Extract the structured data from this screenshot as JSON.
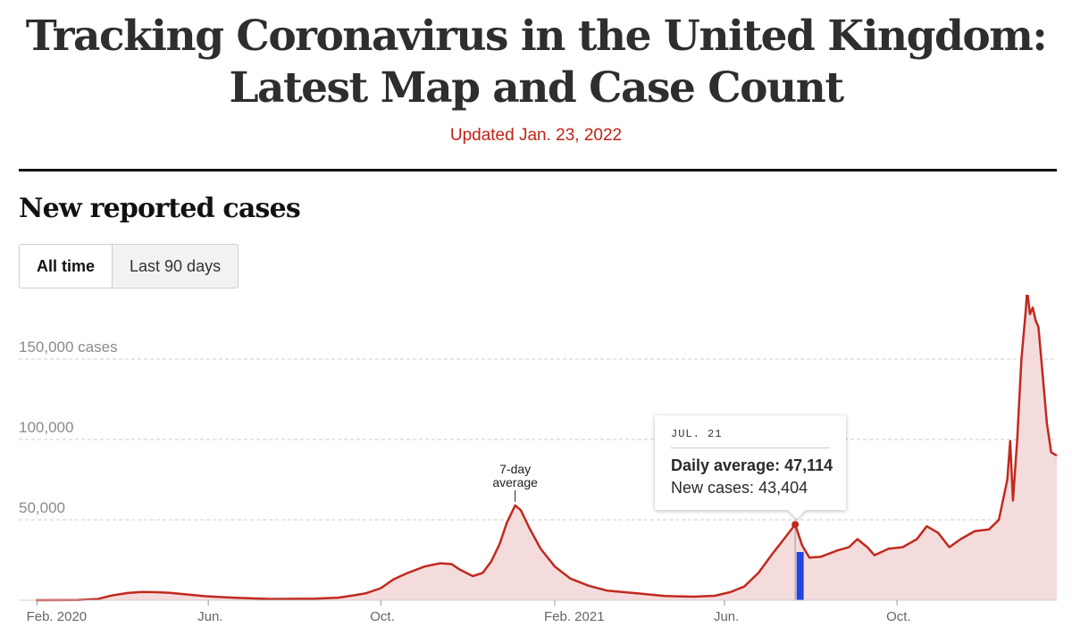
{
  "header": {
    "title": "Tracking Coronavirus in the United Kingdom: Latest Map and Case Count",
    "updated": "Updated Jan. 23, 2022"
  },
  "section": {
    "title": "New reported cases"
  },
  "toggle": {
    "all_time": "All time",
    "last_90": "Last 90 days",
    "selected": "All time"
  },
  "colors": {
    "line": "#c1291f",
    "area": "#f4dcdc",
    "highlight": "#2244e0",
    "grid": "#cccccc"
  },
  "tooltip": {
    "date": "JUL. 21",
    "average_label": "Daily average:",
    "average_value": "47,114",
    "cases_label": "New cases:",
    "cases_value": "43,404"
  },
  "chart_data": {
    "type": "area",
    "title": "",
    "xlabel": "",
    "ylabel": "",
    "x_start": "2020-01-31",
    "x_end": "2022-01-22",
    "ylim": [
      0,
      190000
    ],
    "y_ticks": [
      {
        "value": 150000,
        "label": "150,000 cases"
      },
      {
        "value": 100000,
        "label": "100,000"
      },
      {
        "value": 50000,
        "label": "50,000"
      }
    ],
    "x_ticks": [
      {
        "date": "2020-02-01",
        "label": "Feb. 2020"
      },
      {
        "date": "2020-06-01",
        "label": "Jun."
      },
      {
        "date": "2020-10-01",
        "label": "Oct."
      },
      {
        "date": "2021-02-01",
        "label": "Feb. 2021"
      },
      {
        "date": "2021-06-01",
        "label": "Jun."
      },
      {
        "date": "2021-10-01",
        "label": "Oct."
      }
    ],
    "annotation": {
      "lines": [
        "7-day",
        "average"
      ],
      "date": "2021-01-04",
      "value": 59000
    },
    "highlight": {
      "start": "2021-07-22",
      "end": "2021-07-27",
      "height": 30000
    },
    "selected_point": {
      "date": "2021-07-21",
      "value": 47114
    },
    "series": [
      {
        "values": [
          [
            "2020-01-31",
            0
          ],
          [
            "2020-03-01",
            100
          ],
          [
            "2020-03-15",
            800
          ],
          [
            "2020-03-25",
            3000
          ],
          [
            "2020-04-05",
            4500
          ],
          [
            "2020-04-15",
            5100
          ],
          [
            "2020-04-25",
            5000
          ],
          [
            "2020-05-05",
            4600
          ],
          [
            "2020-05-15",
            3700
          ],
          [
            "2020-05-30",
            2500
          ],
          [
            "2020-06-20",
            1500
          ],
          [
            "2020-07-15",
            800
          ],
          [
            "2020-08-15",
            1000
          ],
          [
            "2020-09-01",
            1600
          ],
          [
            "2020-09-10",
            2800
          ],
          [
            "2020-09-20",
            4200
          ],
          [
            "2020-10-01",
            7500
          ],
          [
            "2020-10-10",
            13000
          ],
          [
            "2020-10-20",
            17000
          ],
          [
            "2020-11-01",
            21000
          ],
          [
            "2020-11-12",
            23000
          ],
          [
            "2020-11-20",
            22500
          ],
          [
            "2020-11-26",
            19000
          ],
          [
            "2020-12-05",
            15000
          ],
          [
            "2020-12-12",
            17000
          ],
          [
            "2020-12-18",
            24000
          ],
          [
            "2020-12-24",
            35000
          ],
          [
            "2020-12-29",
            48000
          ],
          [
            "2021-01-04",
            59000
          ],
          [
            "2021-01-08",
            56000
          ],
          [
            "2021-01-14",
            45000
          ],
          [
            "2021-01-22",
            32000
          ],
          [
            "2021-02-01",
            21000
          ],
          [
            "2021-02-12",
            13500
          ],
          [
            "2021-02-25",
            9000
          ],
          [
            "2021-03-10",
            6000
          ],
          [
            "2021-04-01",
            4200
          ],
          [
            "2021-04-20",
            2600
          ],
          [
            "2021-05-10",
            2200
          ],
          [
            "2021-05-25",
            2800
          ],
          [
            "2021-06-05",
            5000
          ],
          [
            "2021-06-15",
            8500
          ],
          [
            "2021-06-25",
            17000
          ],
          [
            "2021-07-05",
            29000
          ],
          [
            "2021-07-13",
            38000
          ],
          [
            "2021-07-21",
            47114
          ],
          [
            "2021-07-26",
            34000
          ],
          [
            "2021-07-31",
            26500
          ],
          [
            "2021-08-08",
            27000
          ],
          [
            "2021-08-20",
            31000
          ],
          [
            "2021-08-28",
            33000
          ],
          [
            "2021-09-03",
            38000
          ],
          [
            "2021-09-10",
            33000
          ],
          [
            "2021-09-15",
            28000
          ],
          [
            "2021-09-25",
            32000
          ],
          [
            "2021-10-05",
            33000
          ],
          [
            "2021-10-15",
            38000
          ],
          [
            "2021-10-22",
            46000
          ],
          [
            "2021-10-30",
            42000
          ],
          [
            "2021-11-07",
            33000
          ],
          [
            "2021-11-15",
            38000
          ],
          [
            "2021-11-25",
            43000
          ],
          [
            "2021-12-05",
            44000
          ],
          [
            "2021-12-12",
            50000
          ],
          [
            "2021-12-18",
            75000
          ],
          [
            "2021-12-20",
            99000
          ],
          [
            "2021-12-22",
            62000
          ],
          [
            "2021-12-25",
            100000
          ],
          [
            "2021-12-28",
            150000
          ],
          [
            "2021-12-31",
            180000
          ],
          [
            "2022-01-01",
            193000
          ],
          [
            "2022-01-03",
            178000
          ],
          [
            "2022-01-05",
            182000
          ],
          [
            "2022-01-07",
            174000
          ],
          [
            "2022-01-09",
            170000
          ],
          [
            "2022-01-12",
            140000
          ],
          [
            "2022-01-15",
            110000
          ],
          [
            "2022-01-18",
            92000
          ],
          [
            "2022-01-22",
            90000
          ]
        ]
      }
    ]
  }
}
